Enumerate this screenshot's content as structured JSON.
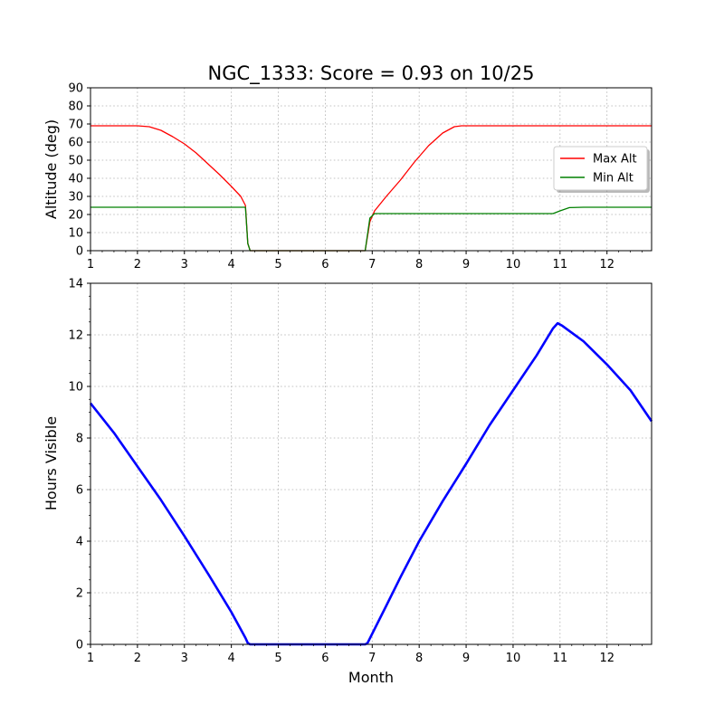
{
  "chart_data": [
    {
      "type": "line",
      "title": "NGC_1333: Score = 0.93 on 10/25",
      "xlabel": "",
      "ylabel": "Altitude (deg)",
      "xlim": [
        1,
        12.95
      ],
      "ylim": [
        0,
        90
      ],
      "x_ticks": [
        "1",
        "2",
        "3",
        "4",
        "5",
        "6",
        "7",
        "8",
        "9",
        "10",
        "11",
        "12"
      ],
      "y_ticks": [
        "0",
        "10",
        "20",
        "30",
        "40",
        "50",
        "60",
        "70",
        "80",
        "90"
      ],
      "grid": true,
      "legend": "right",
      "series": [
        {
          "name": "Max Alt",
          "color": "#ff0000",
          "x": [
            1,
            1.5,
            2.0,
            2.25,
            2.5,
            2.75,
            3.0,
            3.25,
            3.5,
            3.75,
            4.0,
            4.2,
            4.3,
            4.35,
            4.4,
            5,
            6,
            6.85,
            6.95,
            7.05,
            7.3,
            7.6,
            7.9,
            8.2,
            8.5,
            8.75,
            8.9,
            9.5,
            10,
            11,
            12,
            12.95
          ],
          "values": [
            69,
            69,
            69,
            68.5,
            66.5,
            63,
            59,
            54,
            48,
            42,
            35.5,
            30,
            25,
            4,
            0,
            0,
            0,
            0,
            16,
            22,
            30,
            39,
            49,
            58,
            65,
            68.5,
            69,
            69,
            69,
            69,
            69,
            69
          ]
        },
        {
          "name": "Min Alt",
          "color": "#008000",
          "x": [
            1,
            2,
            3,
            4,
            4.3,
            4.35,
            4.4,
            5,
            6,
            6.85,
            6.95,
            7.05,
            8,
            9,
            10,
            10.85,
            11.0,
            11.2,
            11.5,
            12,
            12.95
          ],
          "values": [
            24,
            24,
            24,
            24,
            24,
            4,
            0,
            0,
            0,
            0,
            18,
            20.5,
            20.5,
            20.5,
            20.5,
            20.5,
            22,
            23.8,
            24,
            24,
            24
          ]
        }
      ]
    },
    {
      "type": "line",
      "title": "",
      "xlabel": "Month",
      "ylabel": "Hours Visible",
      "xlim": [
        1,
        12.95
      ],
      "ylim": [
        0,
        14
      ],
      "x_ticks": [
        "1",
        "2",
        "3",
        "4",
        "5",
        "6",
        "7",
        "8",
        "9",
        "10",
        "11",
        "12"
      ],
      "y_ticks": [
        "0",
        "2",
        "4",
        "6",
        "8",
        "10",
        "12",
        "14"
      ],
      "grid": true,
      "series": [
        {
          "color": "#0000ff",
          "x": [
            1,
            1.5,
            2.0,
            2.5,
            3.0,
            3.5,
            4.0,
            4.3,
            4.35,
            4.4,
            5,
            6,
            6.85,
            6.9,
            7.3,
            7.6,
            8.0,
            8.5,
            9.0,
            9.5,
            10.0,
            10.5,
            10.85,
            10.95,
            11.05,
            11.5,
            12.0,
            12.5,
            12.95
          ],
          "values": [
            9.35,
            8.2,
            6.9,
            5.6,
            4.2,
            2.75,
            1.25,
            0.25,
            0.05,
            0,
            0,
            0,
            0,
            0.05,
            1.5,
            2.6,
            4.0,
            5.55,
            7.0,
            8.5,
            9.85,
            11.2,
            12.25,
            12.45,
            12.35,
            11.75,
            10.85,
            9.85,
            8.65
          ]
        }
      ]
    }
  ]
}
